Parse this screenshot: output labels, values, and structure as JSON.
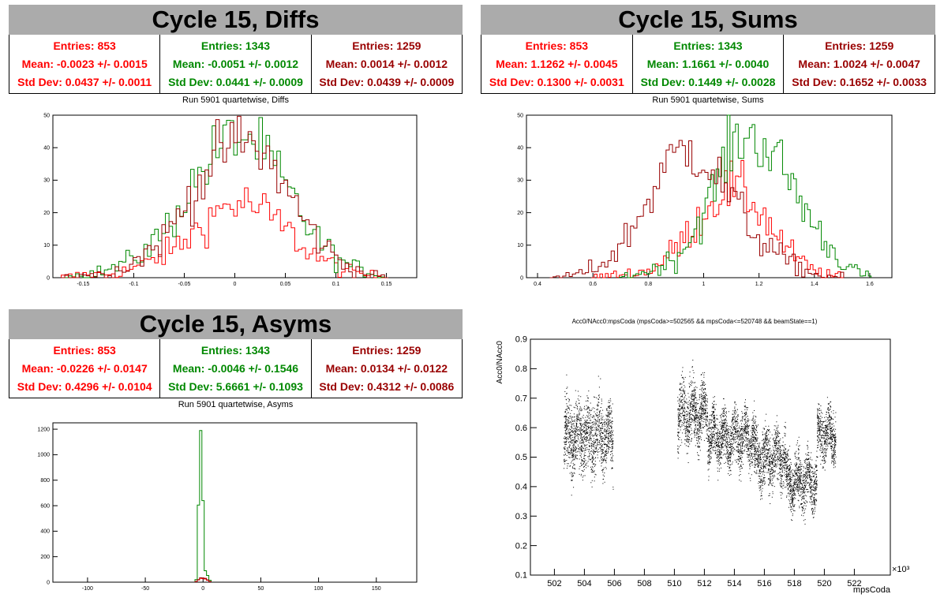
{
  "colors": {
    "s0": "#ff0000",
    "s1": "#008800",
    "s2": "#990000"
  },
  "panels": [
    {
      "title": "Cycle 15, Diffs",
      "stats": [
        {
          "entries": "Entries: 853",
          "mean": "Mean: -0.0023 +/- 0.0015",
          "std": "Std Dev: 0.0437 +/- 0.0011"
        },
        {
          "entries": "Entries: 1343",
          "mean": "Mean: -0.0051 +/- 0.0012",
          "std": "Std Dev: 0.0441 +/- 0.0009"
        },
        {
          "entries": "Entries: 1259",
          "mean": "Mean: 0.0014 +/- 0.0012",
          "std": "Std Dev: 0.0439 +/- 0.0009"
        }
      ],
      "subtitle": "Run 5901 quartetwise, Diffs"
    },
    {
      "title": "Cycle 15, Sums",
      "stats": [
        {
          "entries": "Entries: 853",
          "mean": "Mean: 1.1262 +/- 0.0045",
          "std": "Std Dev: 0.1300 +/- 0.0031"
        },
        {
          "entries": "Entries: 1343",
          "mean": "Mean: 1.1661 +/- 0.0040",
          "std": "Std Dev: 0.1449 +/- 0.0028"
        },
        {
          "entries": "Entries: 1259",
          "mean": "Mean: 1.0024 +/- 0.0047",
          "std": "Std Dev: 0.1652 +/- 0.0033"
        }
      ],
      "subtitle": "Run 5901 quartetwise, Sums"
    },
    {
      "title": "Cycle 15, Asyms",
      "stats": [
        {
          "entries": "Entries: 853",
          "mean": "Mean: -0.0226 +/- 0.0147",
          "std": "Std Dev: 0.4296 +/- 0.0104"
        },
        {
          "entries": "Entries: 1343",
          "mean": "Mean: -0.0046 +/- 0.1546",
          "std": "Std Dev: 5.6661 +/- 0.1093"
        },
        {
          "entries": "Entries: 1259",
          "mean": "Mean: 0.0134 +/- 0.0122",
          "std": "Std Dev: 0.4312 +/- 0.0086"
        }
      ],
      "subtitle": "Run 5901 quartetwise, Asyms"
    }
  ],
  "chart_data": [
    {
      "type": "histogram",
      "title": "Run 5901 quartetwise, Diffs",
      "xlim": [
        -0.18,
        0.18
      ],
      "ylim": [
        0,
        50
      ],
      "xticks": [
        -0.15,
        -0.1,
        -0.05,
        0,
        0.05,
        0.1,
        0.15
      ],
      "xtick_labels": [
        "-0.15",
        "-0.1",
        "-0.05",
        "0",
        "0.05",
        "0.1",
        "0.15"
      ],
      "yticks": [
        0,
        10,
        20,
        30,
        40,
        50
      ],
      "series": [
        {
          "color": "#ff0000",
          "x": [
            -0.17,
            -0.15,
            -0.13,
            -0.11,
            -0.09,
            -0.07,
            -0.05,
            -0.03,
            -0.01,
            0.01,
            0.03,
            0.05,
            0.07,
            0.09,
            0.11,
            0.13,
            0.15
          ],
          "values": [
            0,
            1,
            1,
            2,
            4,
            7,
            11,
            17,
            22,
            23,
            20,
            15,
            9,
            5,
            2,
            1,
            0
          ]
        },
        {
          "color": "#008800",
          "x": [
            -0.17,
            -0.15,
            -0.13,
            -0.11,
            -0.09,
            -0.07,
            -0.05,
            -0.03,
            -0.01,
            0.01,
            0.03,
            0.05,
            0.07,
            0.09,
            0.11,
            0.13,
            0.15
          ],
          "values": [
            0,
            1,
            2,
            4,
            8,
            14,
            24,
            34,
            42,
            44,
            38,
            28,
            17,
            9,
            4,
            2,
            0
          ]
        },
        {
          "color": "#990000",
          "x": [
            -0.17,
            -0.15,
            -0.13,
            -0.11,
            -0.09,
            -0.07,
            -0.05,
            -0.03,
            -0.01,
            0.01,
            0.03,
            0.05,
            0.07,
            0.09,
            0.11,
            0.13,
            0.15
          ],
          "values": [
            0,
            1,
            1,
            3,
            7,
            12,
            22,
            32,
            40,
            42,
            38,
            28,
            17,
            9,
            4,
            1,
            0
          ]
        }
      ]
    },
    {
      "type": "histogram",
      "title": "Run 5901 quartetwise, Sums",
      "xlim": [
        0.36,
        1.68
      ],
      "ylim": [
        0,
        50
      ],
      "xticks": [
        0.4,
        0.6,
        0.8,
        1,
        1.2,
        1.4,
        1.6
      ],
      "xtick_labels": [
        "0.4",
        "0.6",
        "0.8",
        "1",
        "1.2",
        "1.4",
        "1.6"
      ],
      "yticks": [
        0,
        10,
        20,
        30,
        40,
        50
      ],
      "series": [
        {
          "color": "#ff0000",
          "x": [
            0.6,
            0.7,
            0.8,
            0.85,
            0.9,
            0.95,
            1.0,
            1.05,
            1.1,
            1.15,
            1.2,
            1.25,
            1.3,
            1.35,
            1.4,
            1.45,
            1.5
          ],
          "values": [
            0,
            1,
            2,
            5,
            9,
            14,
            20,
            25,
            28,
            26,
            21,
            15,
            9,
            5,
            2,
            1,
            0
          ]
        },
        {
          "color": "#008800",
          "x": [
            0.7,
            0.8,
            0.9,
            0.95,
            1.0,
            1.05,
            1.1,
            1.15,
            1.2,
            1.25,
            1.3,
            1.35,
            1.4,
            1.45,
            1.5,
            1.55,
            1.6
          ],
          "values": [
            0,
            2,
            6,
            12,
            20,
            30,
            40,
            44,
            42,
            38,
            32,
            24,
            16,
            10,
            5,
            2,
            0
          ]
        },
        {
          "color": "#990000",
          "x": [
            0.45,
            0.55,
            0.65,
            0.7,
            0.75,
            0.8,
            0.85,
            0.9,
            0.95,
            1.0,
            1.05,
            1.1,
            1.15,
            1.2,
            1.3,
            1.4,
            1.5
          ],
          "values": [
            0,
            1,
            5,
            10,
            16,
            24,
            32,
            38,
            40,
            37,
            31,
            25,
            18,
            12,
            5,
            1,
            0
          ]
        }
      ]
    },
    {
      "type": "histogram",
      "title": "Run 5901 quartetwise, Asyms",
      "xlim": [
        -130,
        185
      ],
      "ylim": [
        0,
        1250
      ],
      "xticks": [
        -100,
        -50,
        0,
        50,
        100,
        150
      ],
      "xtick_labels": [
        "-100",
        "-50",
        "0",
        "50",
        "100",
        "150"
      ],
      "yticks": [
        0,
        200,
        400,
        600,
        800,
        1000,
        1200
      ],
      "series": [
        {
          "color": "#ff0000",
          "x": [
            -6,
            -2,
            2,
            6
          ],
          "values": [
            5,
            30,
            25,
            5
          ]
        },
        {
          "color": "#008800",
          "x": [
            -6,
            -2,
            2,
            6
          ],
          "values": [
            20,
            1190,
            90,
            15
          ]
        },
        {
          "color": "#990000",
          "x": [
            -6,
            -2,
            2,
            6
          ],
          "values": [
            5,
            35,
            30,
            5
          ]
        }
      ]
    },
    {
      "type": "scatter",
      "title": "Acc0/NAcc0:mpsCoda (mpsCoda>=502565 && mpsCoda<=520748 && beamState==1)",
      "xlabel": "mpsCoda",
      "ylabel": "Acc0/NAcc0",
      "x_exponent": "×10³",
      "xlim": [
        500.4,
        524.4
      ],
      "ylim": [
        0.1,
        0.9
      ],
      "xticks": [
        502,
        504,
        506,
        508,
        510,
        512,
        514,
        516,
        518,
        520,
        522
      ],
      "xtick_labels": [
        "502",
        "504",
        "506",
        "508",
        "510",
        "512",
        "514",
        "516",
        "518",
        "520",
        "522"
      ],
      "yticks": [
        0.1,
        0.2,
        0.3,
        0.4,
        0.5,
        0.6,
        0.7,
        0.8,
        0.9
      ],
      "ytick_labels": [
        "0.1",
        "0.2",
        "0.3",
        "0.4",
        "0.5",
        "0.6",
        "0.7",
        "0.8",
        "0.9"
      ],
      "point_color": "#000000",
      "segments": [
        {
          "x_start": 502.6,
          "x_end": 505.9,
          "mean": 0.57,
          "spread": 0.17
        },
        {
          "x_start": 510.2,
          "x_end": 512.2,
          "mean": 0.65,
          "spread": 0.15
        },
        {
          "x_start": 512.2,
          "x_end": 515.3,
          "mean": 0.57,
          "spread": 0.13
        },
        {
          "x_start": 515.3,
          "x_end": 517.4,
          "mean": 0.5,
          "spread": 0.14
        },
        {
          "x_start": 517.4,
          "x_end": 519.5,
          "mean": 0.42,
          "spread": 0.13
        },
        {
          "x_start": 519.5,
          "x_end": 520.75,
          "mean": 0.58,
          "spread": 0.12
        }
      ]
    }
  ]
}
